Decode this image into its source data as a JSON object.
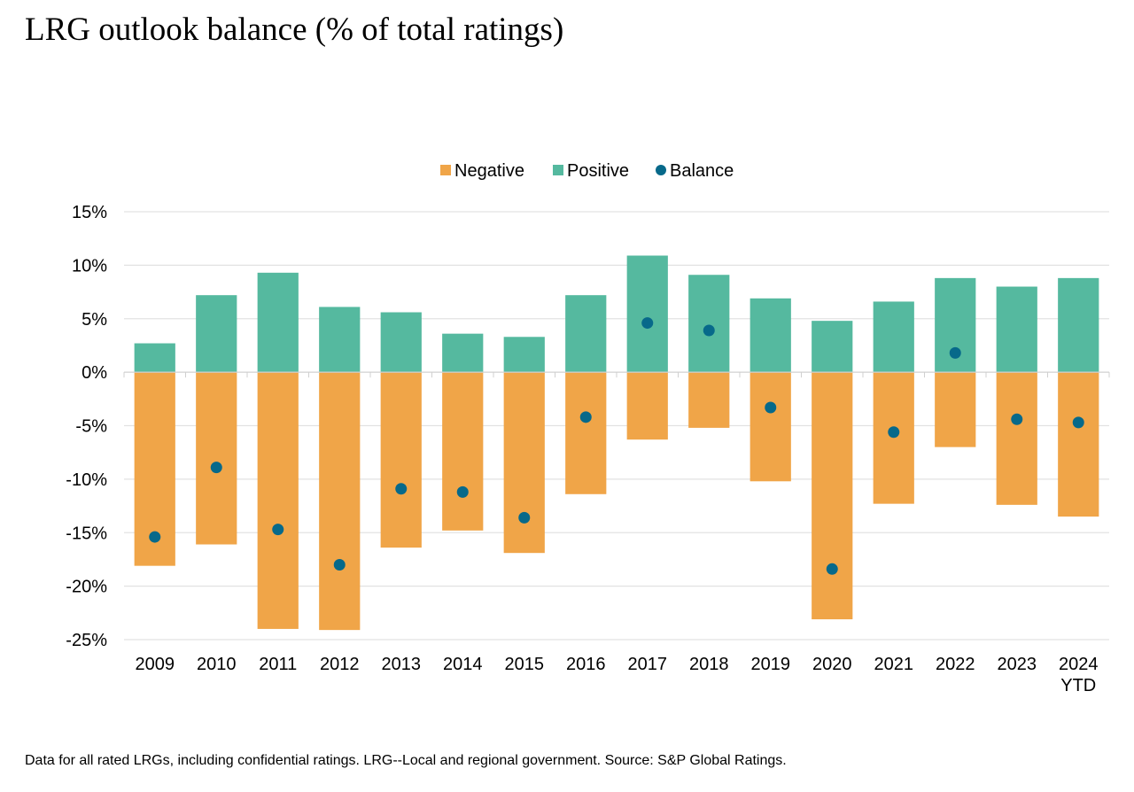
{
  "chart_data": {
    "type": "bar",
    "title": "LRG outlook balance (% of total ratings)",
    "xlabel": "",
    "ylabel": "",
    "ylim": [
      -25,
      15
    ],
    "yticks": [
      15,
      10,
      5,
      0,
      -5,
      -10,
      -15,
      -20,
      -25
    ],
    "ytick_labels": [
      "15%",
      "10%",
      "5%",
      "0%",
      "-5%",
      "-10%",
      "-15%",
      "-20%",
      "-25%"
    ],
    "grid": true,
    "legend_position": "top-center",
    "categories": [
      "2009",
      "2010",
      "2011",
      "2012",
      "2013",
      "2014",
      "2015",
      "2016",
      "2017",
      "2018",
      "2019",
      "2020",
      "2021",
      "2022",
      "2023",
      "2024 YTD"
    ],
    "category_labels": [
      [
        "2009"
      ],
      [
        "2010"
      ],
      [
        "2011"
      ],
      [
        "2012"
      ],
      [
        "2013"
      ],
      [
        "2014"
      ],
      [
        "2015"
      ],
      [
        "2016"
      ],
      [
        "2017"
      ],
      [
        "2018"
      ],
      [
        "2019"
      ],
      [
        "2020"
      ],
      [
        "2021"
      ],
      [
        "2022"
      ],
      [
        "2023"
      ],
      [
        "2024",
        "YTD"
      ]
    ],
    "series": [
      {
        "name": "Negative",
        "kind": "bar",
        "color": "#f0a548",
        "values": [
          -18.1,
          -16.1,
          -24.0,
          -24.1,
          -16.4,
          -14.8,
          -16.9,
          -11.4,
          -6.3,
          -5.2,
          -10.2,
          -23.1,
          -12.3,
          -7.0,
          -12.4,
          -13.5
        ]
      },
      {
        "name": "Positive",
        "kind": "bar",
        "color": "#55b99f",
        "values": [
          2.7,
          7.2,
          9.3,
          6.1,
          5.6,
          3.6,
          3.3,
          7.2,
          10.9,
          9.1,
          6.9,
          4.8,
          6.6,
          8.8,
          8.0,
          8.8
        ]
      },
      {
        "name": "Balance",
        "kind": "dot",
        "color": "#07698a",
        "values": [
          -15.4,
          -8.9,
          -14.7,
          -18.0,
          -10.9,
          -11.2,
          -13.6,
          -4.2,
          4.6,
          3.9,
          -3.3,
          -18.4,
          -5.6,
          1.8,
          -4.4,
          -4.7
        ]
      }
    ],
    "footnote": "Data for all rated LRGs, including confidential ratings. LRG--Local and regional government. Source: S&P Global Ratings."
  },
  "colors": {
    "gridline": "#e2e2e2",
    "axis": "#d0d0d0"
  }
}
